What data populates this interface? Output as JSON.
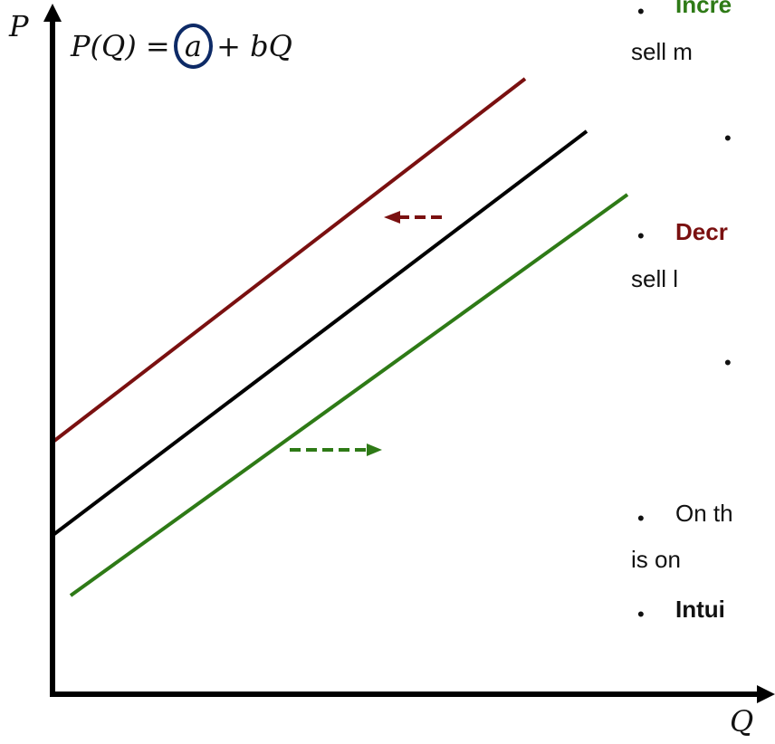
{
  "equation": {
    "lhs": "P(Q) = ",
    "a": "a",
    "rhs": " + bQ"
  },
  "axes": {
    "y_label": "P",
    "x_label": "Q"
  },
  "colors": {
    "red_line": "#7a1010",
    "black_line": "#000000",
    "green_line": "#2e7a16",
    "circle": "#0d2a66"
  },
  "bullets": [
    {
      "text": "Incre",
      "style": "strong-green",
      "dot": true
    },
    {
      "text": "sell m",
      "style": "",
      "dot": false
    },
    {
      "text": "",
      "style": "",
      "dot": true
    },
    {
      "text": "Decr",
      "style": "strong-red",
      "dot": true
    },
    {
      "text": "sell l",
      "style": "",
      "dot": false
    },
    {
      "text": "",
      "style": "",
      "dot": true
    },
    {
      "text": "On th",
      "style": "",
      "dot": true
    },
    {
      "text": "is on",
      "style": "",
      "dot": false
    },
    {
      "text": "Intui",
      "style": "strong-black",
      "dot": true
    }
  ]
}
